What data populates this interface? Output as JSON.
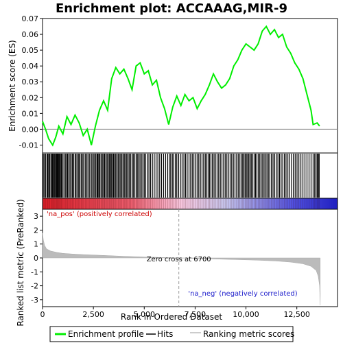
{
  "chart_data": {
    "type": "line",
    "title": "Enrichment plot: ACCAAAG,MIR-9",
    "x_axis": {
      "label": "Rank in Ordered Dataset",
      "ticks": [
        "0",
        "2,500",
        "5,000",
        "7,500",
        "10,000",
        "12,500"
      ],
      "range": [
        0,
        14500
      ]
    },
    "es_panel": {
      "ylabel": "Enrichment score (ES)",
      "ylim": [
        -0.015,
        0.07
      ],
      "yticks": [
        "-0.01",
        "0.00",
        "0.01",
        "0.02",
        "0.03",
        "0.04",
        "0.05",
        "0.06",
        "0.07"
      ],
      "series_color": "#00ee00",
      "points": [
        [
          0,
          0.005
        ],
        [
          150,
          0.0
        ],
        [
          300,
          -0.006
        ],
        [
          500,
          -0.01
        ],
        [
          650,
          -0.005
        ],
        [
          800,
          0.002
        ],
        [
          1000,
          -0.003
        ],
        [
          1200,
          0.008
        ],
        [
          1400,
          0.003
        ],
        [
          1600,
          0.009
        ],
        [
          1800,
          0.004
        ],
        [
          2000,
          -0.004
        ],
        [
          2200,
          0.0
        ],
        [
          2400,
          -0.01
        ],
        [
          2600,
          0.002
        ],
        [
          2800,
          0.012
        ],
        [
          3000,
          0.018
        ],
        [
          3200,
          0.012
        ],
        [
          3400,
          0.032
        ],
        [
          3600,
          0.039
        ],
        [
          3800,
          0.035
        ],
        [
          4000,
          0.038
        ],
        [
          4200,
          0.032
        ],
        [
          4400,
          0.025
        ],
        [
          4600,
          0.04
        ],
        [
          4800,
          0.042
        ],
        [
          5000,
          0.035
        ],
        [
          5200,
          0.037
        ],
        [
          5400,
          0.028
        ],
        [
          5600,
          0.031
        ],
        [
          5800,
          0.02
        ],
        [
          6000,
          0.013
        ],
        [
          6200,
          0.003
        ],
        [
          6400,
          0.014
        ],
        [
          6600,
          0.021
        ],
        [
          6800,
          0.015
        ],
        [
          7000,
          0.022
        ],
        [
          7200,
          0.018
        ],
        [
          7400,
          0.02
        ],
        [
          7600,
          0.013
        ],
        [
          7800,
          0.018
        ],
        [
          8000,
          0.022
        ],
        [
          8200,
          0.028
        ],
        [
          8400,
          0.035
        ],
        [
          8600,
          0.03
        ],
        [
          8800,
          0.026
        ],
        [
          9000,
          0.028
        ],
        [
          9200,
          0.032
        ],
        [
          9400,
          0.04
        ],
        [
          9600,
          0.044
        ],
        [
          9800,
          0.05
        ],
        [
          10000,
          0.054
        ],
        [
          10200,
          0.052
        ],
        [
          10400,
          0.05
        ],
        [
          10600,
          0.054
        ],
        [
          10800,
          0.062
        ],
        [
          11000,
          0.065
        ],
        [
          11200,
          0.06
        ],
        [
          11400,
          0.063
        ],
        [
          11600,
          0.058
        ],
        [
          11800,
          0.06
        ],
        [
          12000,
          0.052
        ],
        [
          12200,
          0.048
        ],
        [
          12400,
          0.042
        ],
        [
          12600,
          0.038
        ],
        [
          12800,
          0.032
        ],
        [
          13000,
          0.022
        ],
        [
          13200,
          0.012
        ],
        [
          13300,
          0.003
        ],
        [
          13500,
          0.004
        ],
        [
          13620,
          0.002
        ]
      ]
    },
    "hits": {
      "label": "Hits",
      "positions": [
        30,
        80,
        150,
        220,
        260,
        310,
        360,
        420,
        470,
        510,
        560,
        600,
        640,
        690,
        720,
        760,
        800,
        840,
        880,
        930,
        980,
        1050,
        1120,
        1180,
        1230,
        1290,
        1350,
        1410,
        1470,
        1530,
        1600,
        1650,
        1720,
        1780,
        1830,
        1900,
        1960,
        2020,
        2100,
        2170,
        2230,
        2300,
        2380,
        2430,
        2500,
        2560,
        2620,
        2680,
        2720,
        2770,
        2820,
        2880,
        2940,
        3000,
        3050,
        3110,
        3170,
        3220,
        3280,
        3330,
        3380,
        3430,
        3490,
        3540,
        3600,
        3660,
        3720,
        3780,
        3840,
        3900,
        3960,
        4020,
        4080,
        4140,
        4200,
        4260,
        4330,
        4400,
        4460,
        4530,
        4600,
        4660,
        4720,
        4790,
        4860,
        4930,
        5000,
        5070,
        5150,
        5230,
        5310,
        5400,
        5490,
        5580,
        5670,
        5760,
        5850,
        5950,
        6050,
        6150,
        6230,
        6300,
        6380,
        6450,
        6530,
        6600,
        6690,
        6780,
        6860,
        6950,
        7030,
        7110,
        7200,
        7280,
        7360,
        7440,
        7520,
        7600,
        7680,
        7760,
        7840,
        7920,
        8000,
        8070,
        8140,
        8210,
        8280,
        8350,
        8430,
        8500,
        8580,
        8660,
        8740,
        8820,
        8900,
        8980,
        9060,
        9140,
        9220,
        9300,
        9380,
        9460,
        9540,
        9620,
        9700,
        9770,
        9840,
        9900,
        9960,
        10020,
        10080,
        10140,
        10200,
        10260,
        10330,
        10400,
        10470,
        10540,
        10610,
        10680,
        10750,
        10820,
        10890,
        10960,
        11030,
        11100,
        11170,
        11250,
        11330,
        11410,
        11490,
        11570,
        11650,
        11730,
        11810,
        11890,
        11970,
        12060,
        12150,
        12240,
        12330,
        12420,
        12510,
        12600,
        12700,
        12800,
        12900,
        13000,
        13100,
        13200,
        13300,
        13380,
        13450,
        13510,
        13560,
        13600
      ]
    },
    "ranked_metric": {
      "ylabel": "Ranked list metric (PreRanked)",
      "ylim": [
        -3.5,
        3.5
      ],
      "yticks": [
        "3",
        "2",
        "1",
        "0",
        "-1",
        "-2",
        "-3"
      ],
      "zero_cross_label": "Zero cross at 6700",
      "zero_cross": 6700,
      "pos_label": "'na_pos' (positively correlated)",
      "neg_label": "'na_neg' (negatively correlated)",
      "points": [
        [
          0,
          1.8
        ],
        [
          40,
          1.3
        ],
        [
          100,
          0.9
        ],
        [
          200,
          0.65
        ],
        [
          400,
          0.5
        ],
        [
          700,
          0.4
        ],
        [
          1000,
          0.33
        ],
        [
          1500,
          0.28
        ],
        [
          2000,
          0.24
        ],
        [
          3000,
          0.18
        ],
        [
          4000,
          0.12
        ],
        [
          5000,
          0.07
        ],
        [
          6000,
          0.03
        ],
        [
          6700,
          0.0
        ],
        [
          7500,
          -0.04
        ],
        [
          8500,
          -0.08
        ],
        [
          9500,
          -0.12
        ],
        [
          10500,
          -0.16
        ],
        [
          11500,
          -0.22
        ],
        [
          12200,
          -0.3
        ],
        [
          12800,
          -0.42
        ],
        [
          13200,
          -0.6
        ],
        [
          13450,
          -0.9
        ],
        [
          13550,
          -1.3
        ],
        [
          13620,
          -2.0
        ],
        [
          13650,
          -3.4
        ]
      ]
    },
    "legend": {
      "placement": "bottom",
      "items": [
        {
          "label": "Enrichment profile",
          "color": "#00ee00"
        },
        {
          "label": "Hits",
          "color": "#000000"
        },
        {
          "label": "Ranking metric scores",
          "color": "#bbbbbb"
        }
      ]
    }
  }
}
